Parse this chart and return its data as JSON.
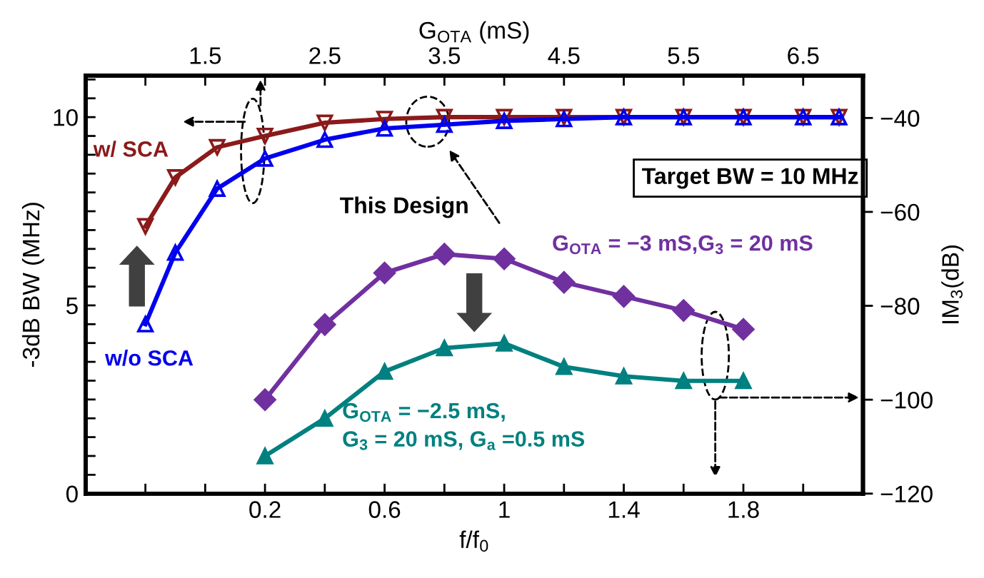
{
  "chart_data": {
    "type": "line",
    "xlabel": "f/f$_{0}$",
    "x2label": "G$_{OTA}$ (mS)",
    "ylabel": "-3dB BW (MHz)",
    "y2label": "IM$_{3}$(dB)",
    "xlim": [
      -0.4,
      2.2
    ],
    "xticks": [
      {
        "value": -0.2,
        "label": null
      },
      {
        "value": 0,
        "label": null
      },
      0.2,
      {
        "value": 0.4,
        "label": null
      },
      0.6,
      {
        "value": 0.8,
        "label": null
      },
      1,
      {
        "value": 1.2,
        "label": null
      },
      1.4,
      {
        "value": 1.6,
        "label": null
      },
      1.8,
      {
        "value": 2.0,
        "label": null
      }
    ],
    "x2lim": [
      0.5,
      7.0
    ],
    "x2ticks": [
      {
        "value": 1.0,
        "label": null
      },
      1.5,
      {
        "value": 2.0,
        "label": null
      },
      2.5,
      {
        "value": 3.0,
        "label": null
      },
      3.5,
      {
        "value": 4.0,
        "label": null
      },
      4.5,
      {
        "value": 5.0,
        "label": null
      },
      5.5,
      {
        "value": 6.0,
        "label": null
      },
      6.5
    ],
    "ylim": [
      0,
      11.1
    ],
    "yticks": [
      0,
      {
        "value": 0.5,
        "label": null
      },
      {
        "value": 1,
        "label": null
      },
      {
        "value": 1.5,
        "label": null
      },
      {
        "value": 2,
        "label": null
      },
      {
        "value": 2.5,
        "label": null
      },
      {
        "value": 3,
        "label": null
      },
      {
        "value": 3.5,
        "label": null
      },
      {
        "value": 4,
        "label": null
      },
      {
        "value": 4.5,
        "label": null
      },
      5,
      {
        "value": 5.5,
        "label": null
      },
      {
        "value": 6,
        "label": null
      },
      {
        "value": 6.5,
        "label": null
      },
      {
        "value": 7,
        "label": null
      },
      {
        "value": 7.5,
        "label": null
      },
      {
        "value": 8,
        "label": null
      },
      {
        "value": 8.5,
        "label": null
      },
      {
        "value": 9,
        "label": null
      },
      {
        "value": 9.5,
        "label": null
      },
      10,
      {
        "value": 10.5,
        "label": null
      },
      {
        "value": 11,
        "label": null
      }
    ],
    "y2lim": [
      -120,
      -31
    ],
    "y2ticks": [
      {
        "value": -120,
        "label": "−120"
      },
      {
        "value": -100,
        "label": "−100"
      },
      {
        "value": -80,
        "label": "−80"
      },
      {
        "value": -60,
        "label": "−60"
      },
      {
        "value": -40,
        "label": "−40"
      }
    ],
    "grid": false,
    "legend": false,
    "line_style": "solid",
    "series": [
      {
        "name": "w/ SCA",
        "color": "#8b1a1a",
        "axis": "x2",
        "marker": "triangle_down_open",
        "x": [
          1.0,
          1.25,
          1.6,
          2.0,
          2.5,
          3.0,
          3.5,
          4.0,
          4.5,
          5.0,
          5.5,
          6.0,
          6.5,
          6.8
        ],
        "values": [
          7.1,
          8.4,
          9.2,
          9.5,
          9.85,
          9.95,
          10,
          10,
          10,
          10,
          10,
          10,
          10,
          10
        ]
      },
      {
        "name": "w/o SCA",
        "color": "#0000ee",
        "axis": "x2",
        "marker": "triangle_open",
        "x": [
          1.0,
          1.25,
          1.6,
          2.0,
          2.5,
          3.0,
          3.5,
          4.0,
          4.5,
          5.0,
          5.5,
          6.0,
          6.5,
          6.8
        ],
        "values": [
          4.5,
          6.4,
          8.1,
          8.9,
          9.4,
          9.7,
          9.8,
          9.9,
          9.95,
          10,
          10,
          10,
          10,
          10
        ]
      },
      {
        "name": "G$_{OTA}$ = −3 mS,G$_{3}$ = 20 mS",
        "color": "#7030a0",
        "axis": "y2",
        "marker": "diamond",
        "x": [
          0.2,
          0.4,
          0.6,
          0.8,
          1.0,
          1.2,
          1.4,
          1.6,
          1.8
        ],
        "values": [
          -100,
          -84,
          -73,
          -69,
          -70,
          -75,
          -78,
          -81,
          -85
        ]
      },
      {
        "name": "G$_{OTA}$ = −2.5 mS,\nG$_{3}$ = 20 mS, G$_{a}$ =0.5 mS",
        "color": "#008080",
        "axis": "y2",
        "marker": "triangle",
        "x": [
          0.2,
          0.4,
          0.6,
          0.8,
          1.0,
          1.2,
          1.4,
          1.6,
          1.8
        ],
        "values": [
          -112,
          -104,
          -94,
          -89,
          -88,
          -93,
          -95,
          -96,
          -96
        ]
      }
    ],
    "annotations": [
      "This Design",
      "Target BW = 10 MHz"
    ]
  }
}
